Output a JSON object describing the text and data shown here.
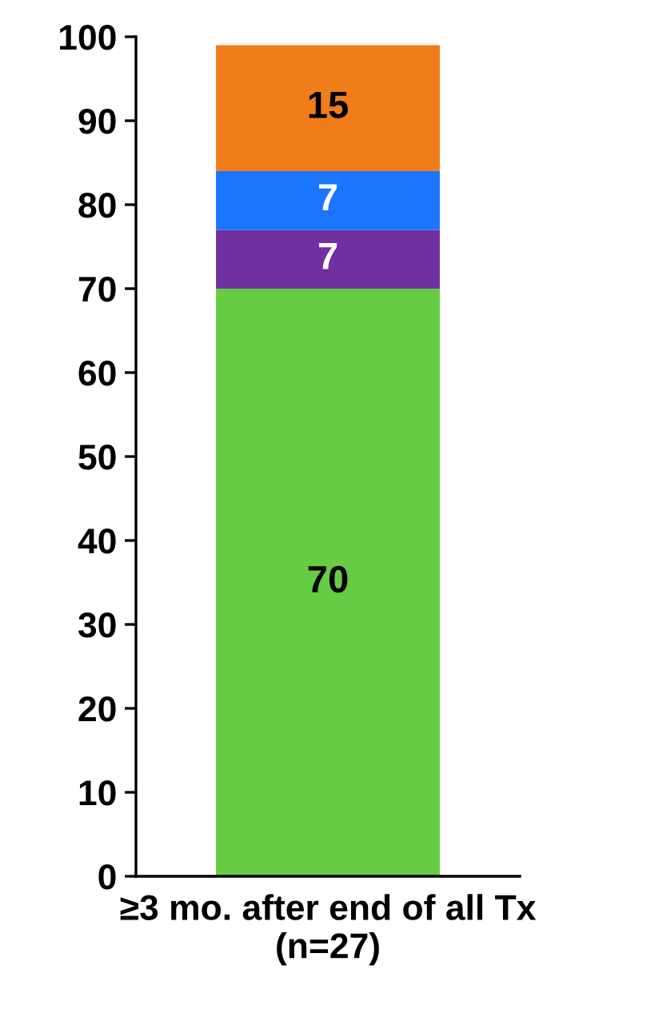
{
  "chart_data": {
    "type": "bar",
    "stacked": true,
    "categories": [
      "≥3 mo. after end of all Tx\n(n=27)"
    ],
    "series": [
      {
        "color": "#66cc44",
        "values": [
          70
        ]
      },
      {
        "color": "#7030a0",
        "values": [
          7
        ]
      },
      {
        "color": "#1a75ff",
        "values": [
          7
        ]
      },
      {
        "color": "#f07d1a",
        "values": [
          15
        ]
      }
    ],
    "ylim": [
      0,
      100
    ],
    "yticks": [
      0,
      10,
      20,
      30,
      40,
      50,
      60,
      70,
      80,
      90,
      100
    ],
    "data_labels": true,
    "grid": false,
    "legend": false
  }
}
